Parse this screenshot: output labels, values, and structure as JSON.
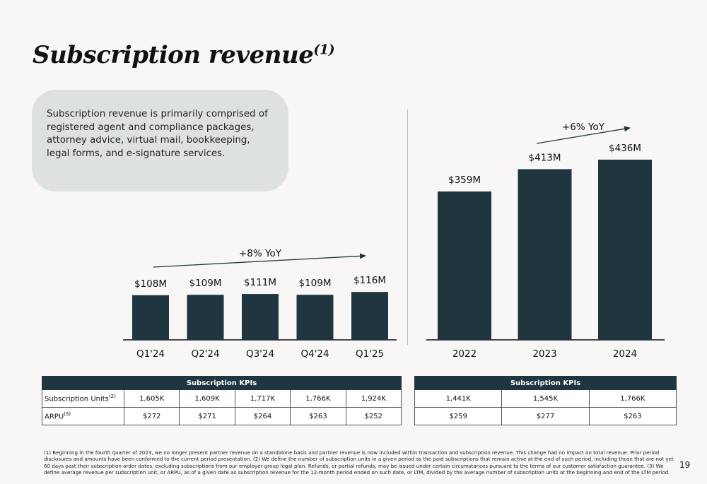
{
  "title": {
    "text": "Subscription revenue",
    "superscript": "(1)"
  },
  "description": "Subscription revenue is primarily comprised of registered agent and compliance packages, attorney advice, virtual mail, bookkeeping, legal forms, and e-signature services.",
  "colors": {
    "bar": "#1f3640",
    "background": "#f8f7f5",
    "callout": "#dee1e2"
  },
  "chart_data": [
    {
      "type": "bar",
      "categories": [
        "Q1'24",
        "Q2'24",
        "Q3'24",
        "Q4'24",
        "Q1'25"
      ],
      "values": [
        108,
        109,
        111,
        109,
        116
      ],
      "data_labels": [
        "$108M",
        "$109M",
        "$111M",
        "$109M",
        "$116M"
      ],
      "annotation": "+8% YoY",
      "title": "",
      "xlabel": "",
      "ylabel": "",
      "ylim": [
        0,
        475
      ]
    },
    {
      "type": "bar",
      "categories": [
        "2022",
        "2023",
        "2024"
      ],
      "values": [
        359,
        413,
        436
      ],
      "data_labels": [
        "$359M",
        "$413M",
        "$436M"
      ],
      "annotation": "+6% YoY",
      "title": "",
      "xlabel": "",
      "ylabel": "",
      "ylim": [
        0,
        475
      ]
    }
  ],
  "kpi_left": {
    "header": "Subscription KPIs",
    "rows": [
      {
        "label": "Subscription Units",
        "sup": "(2)",
        "values": [
          "1,605K",
          "1,609K",
          "1,717K",
          "1,766K",
          "1,924K"
        ]
      },
      {
        "label": "ARPU",
        "sup": "(3)",
        "values": [
          "$272",
          "$271",
          "$264",
          "$263",
          "$252"
        ]
      }
    ]
  },
  "kpi_right": {
    "header": "Subscription KPIs",
    "rows": [
      {
        "values": [
          "1,441K",
          "1,545K",
          "1,766K"
        ]
      },
      {
        "values": [
          "$259",
          "$277",
          "$263"
        ]
      }
    ]
  },
  "footnote": "(1) Beginning in the fourth quarter of 2023, we no longer present partner revenue on a standalone basis and partner revenue is now included within transaction and subscription revenue. This change had no impact on total revenue. Prior period disclosures and amounts have been conformed to the current period presentation. (2) We define the number of subscription units in a given period as the paid subscriptions that remain active at the end of such period, including those that are not yet 60 days past their subscription order dates, excluding subscriptions from our employer group legal plan. Refunds, or partial refunds, may be issued under certain circumstances pursuant to the terms of our customer satisfaction guarantee. (3) We define average revenue per subscription unit, or ARPU, as of a given date as subscription revenue for the 12-month period ended on such date, or LTM, divided by the average number of subscription units at the beginning and end of the LTM period.",
  "page_number": "19"
}
